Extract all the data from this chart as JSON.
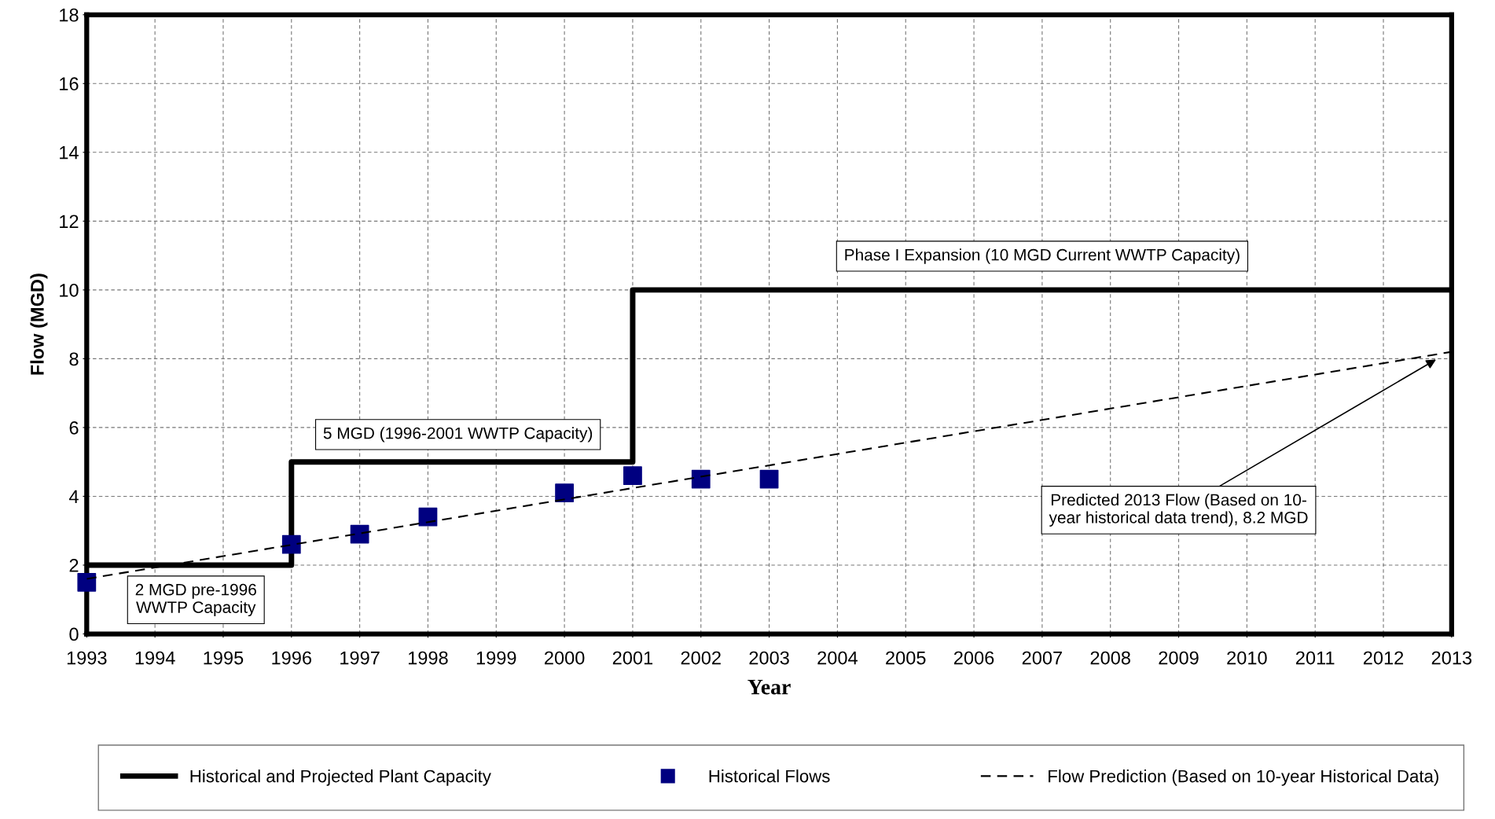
{
  "chart_data": {
    "type": "line",
    "xlabel": "Year",
    "ylabel": "Flow (MGD)",
    "xlim": [
      1993,
      2013
    ],
    "xticks": [
      1993,
      1994,
      1995,
      1996,
      1997,
      1998,
      1999,
      2000,
      2001,
      2002,
      2003,
      2004,
      2005,
      2006,
      2007,
      2008,
      2009,
      2010,
      2011,
      2012,
      2013
    ],
    "ylim": [
      0,
      18
    ],
    "yticks": [
      0,
      2,
      4,
      6,
      8,
      10,
      12,
      14,
      16,
      18
    ],
    "grid": true,
    "legend": "bottom",
    "series": [
      {
        "name": "Historical and Projected Plant Capacity",
        "type": "step",
        "color": "#000000",
        "marker": "none",
        "line_style": "solid",
        "x": [
          1993,
          1996,
          2001,
          2013
        ],
        "values": [
          2,
          5,
          10,
          10
        ]
      },
      {
        "name": "Historical Flows",
        "type": "scatter",
        "color": "#000080",
        "marker": "square",
        "x": [
          1993,
          1996,
          1997,
          1998,
          2000,
          2001,
          2002,
          2003
        ],
        "values": [
          1.5,
          2.6,
          2.9,
          3.4,
          4.1,
          4.6,
          4.5,
          4.5
        ]
      },
      {
        "name": "Flow Prediction (Based on 10-year Historical Data)",
        "color": "#000000",
        "marker": "none",
        "line_style": "dashed",
        "x": [
          1993,
          2013
        ],
        "values": [
          1.6,
          8.2
        ]
      }
    ],
    "annotations": [
      "2 MGD pre-1996\nWWTP Capacity",
      "5 MGD (1996-2001 WWTP Capacity)",
      "Phase I Expansion (10 MGD Current WWTP Capacity)",
      "Predicted 2013 Flow (Based on 10-\nyear historical data trend), 8.2 MGD"
    ]
  }
}
